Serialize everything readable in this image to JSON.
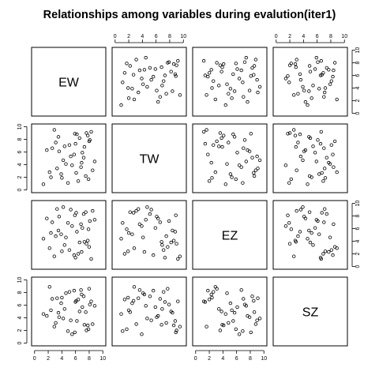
{
  "chart_data": {
    "type": "scatter",
    "title": "Relationships among variables during evalution(iter1)",
    "variables": [
      "EW",
      "TW",
      "EZ",
      "SZ"
    ],
    "axis_range": [
      0,
      10
    ],
    "axis_ticks": [
      0,
      2,
      4,
      6,
      8,
      10
    ],
    "grid": false,
    "observations": {
      "EW": [
        7.8,
        8.1,
        7.5,
        6.9,
        6.2,
        5.8,
        4.9,
        4.4,
        3.3,
        3.1,
        2.2,
        1.8,
        8.3,
        7.9,
        7.2,
        6.6,
        5.5,
        5.1,
        4.2,
        3.9,
        2.9,
        2.6,
        1.3,
        8.5,
        8.0,
        7.0,
        6.4,
        5.9,
        4.6,
        3.6,
        2.4,
        7.6,
        6.8,
        6.0,
        5.3,
        4.0,
        3.5,
        8.8,
        7.3,
        6.1
      ],
      "TW": [
        8.6,
        7.9,
        2.2,
        4.3,
        8.8,
        5.6,
        1.1,
        6.9,
        3.4,
        7.5,
        2.8,
        6.3,
        9.2,
        1.7,
        5.1,
        8.2,
        3.9,
        7.1,
        4.7,
        2.5,
        9.5,
        6.6,
        0.9,
        3.1,
        7.7,
        5.9,
        1.4,
        8.9,
        4.1,
        6.1,
        2.0,
        9.0,
        3.6,
        7.3,
        5.3,
        1.9,
        8.4,
        4.5,
        6.8,
        2.7
      ],
      "EZ": [
        4.1,
        7.2,
        8.6,
        2.3,
        5.5,
        1.8,
        6.9,
        3.4,
        9.1,
        4.8,
        2.9,
        7.6,
        1.2,
        5.9,
        8.3,
        3.8,
        6.4,
        2.6,
        9.4,
        5.1,
        1.6,
        7.0,
        4.4,
        8.8,
        3.1,
        6.1,
        2.0,
        8.1,
        4.6,
        7.9,
        5.3,
        3.6,
        6.7,
        1.4,
        9.0,
        2.4,
        5.7,
        7.4,
        3.9,
        8.5
      ],
      "SZ": [
        2.8,
        6.1,
        4.9,
        7.7,
        3.5,
        8.3,
        1.9,
        5.4,
        7.1,
        3.2,
        8.9,
        4.3,
        6.6,
        2.2,
        7.4,
        5.0,
        1.4,
        8.1,
        3.9,
        6.3,
        2.6,
        7.0,
        4.6,
        3.0,
        8.6,
        5.7,
        6.9,
        1.7,
        7.9,
        4.1,
        5.2,
        2.0,
        8.4,
        6.5,
        3.6,
        7.2,
        4.8,
        5.9,
        2.9,
        6.7
      ]
    }
  }
}
